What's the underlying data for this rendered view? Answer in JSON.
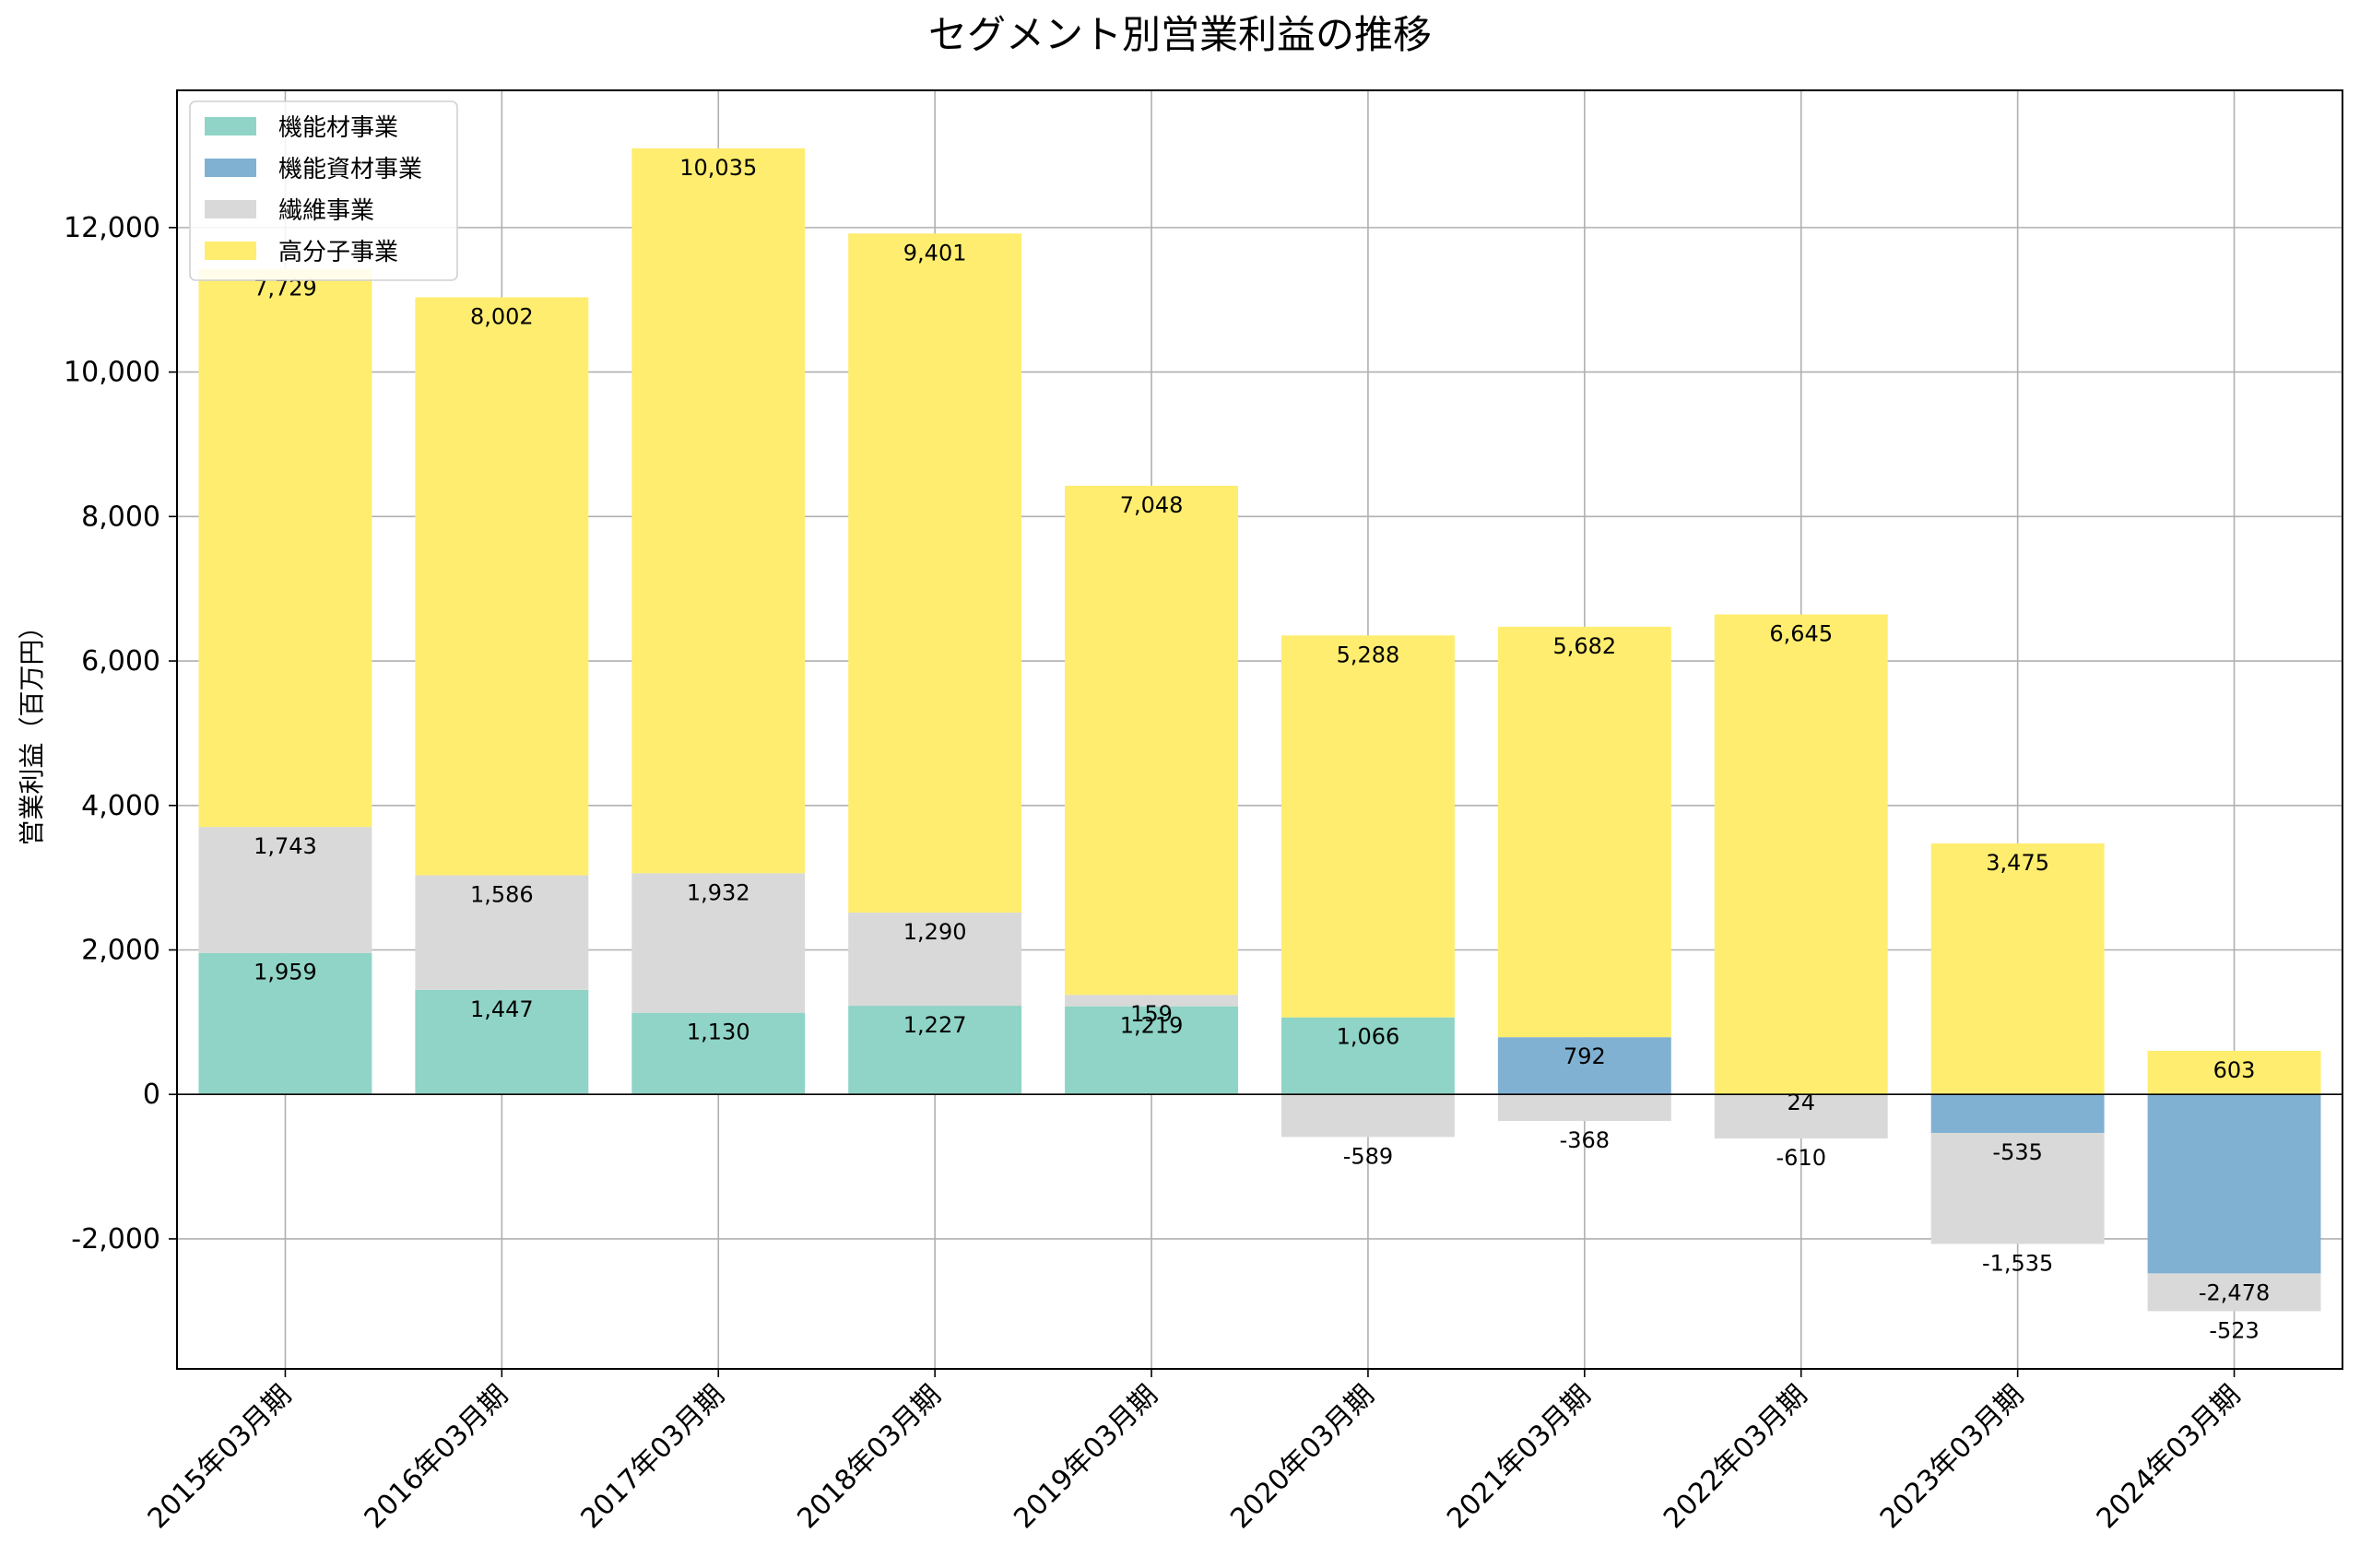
{
  "chart_data": {
    "type": "bar",
    "stacked": true,
    "title": "セグメント別営業利益の推移",
    "xlabel": "",
    "ylabel": "営業利益（百万円）",
    "ylim": [
      -3800,
      13900
    ],
    "yticks": [
      -2000,
      0,
      2000,
      4000,
      6000,
      8000,
      10000,
      12000
    ],
    "ytick_labels": [
      "-2,000",
      "0",
      "2,000",
      "4,000",
      "6,000",
      "8,000",
      "10,000",
      "12,000"
    ],
    "grid": true,
    "legend_position": "top-left",
    "categories": [
      "2015年03月期",
      "2016年03月期",
      "2017年03月期",
      "2018年03月期",
      "2019年03月期",
      "2020年03月期",
      "2021年03月期",
      "2022年03月期",
      "2023年03月期",
      "2024年03月期"
    ],
    "series": [
      {
        "name": "機能材事業",
        "color": "#8fd4c6",
        "values": [
          1959,
          1447,
          1130,
          1227,
          1219,
          1066,
          null,
          null,
          null,
          null
        ]
      },
      {
        "name": "機能資材事業",
        "color": "#80b1d3",
        "values": [
          null,
          null,
          null,
          null,
          null,
          null,
          792,
          null,
          -535,
          -2478
        ]
      },
      {
        "name": "繊維事業",
        "color": "#d9d9d9",
        "values": [
          1743,
          1586,
          1932,
          1290,
          159,
          -589,
          -368,
          -610,
          -1535,
          -523
        ]
      },
      {
        "name": "高分子事業",
        "color": "#ffed6f",
        "values": [
          7729,
          8002,
          10035,
          9401,
          7048,
          5288,
          5682,
          6645,
          3475,
          603
        ]
      }
    ],
    "data_labels": {
      "機能材事業": [
        "1,959",
        "1,447",
        "1,130",
        "1,227",
        "1,219",
        "1,066",
        "",
        "",
        "",
        ""
      ],
      "機能資材事業": [
        "",
        "",
        "",
        "",
        "",
        "",
        "792",
        "",
        "-535",
        "-2,478"
      ],
      "繊維事業": [
        "1,743",
        "1,586",
        "1,932",
        "1,290",
        "159",
        "-589",
        "-368",
        "-610",
        "-1,535",
        "-523"
      ],
      "高分子事業": [
        "7,729",
        "8,002",
        "10,035",
        "9,401",
        "7,048",
        "5,288",
        "5,682",
        "6,645",
        "3,475",
        "603"
      ]
    },
    "extra_labels": [
      {
        "category": "2022年03月期",
        "text": "24"
      }
    ]
  }
}
